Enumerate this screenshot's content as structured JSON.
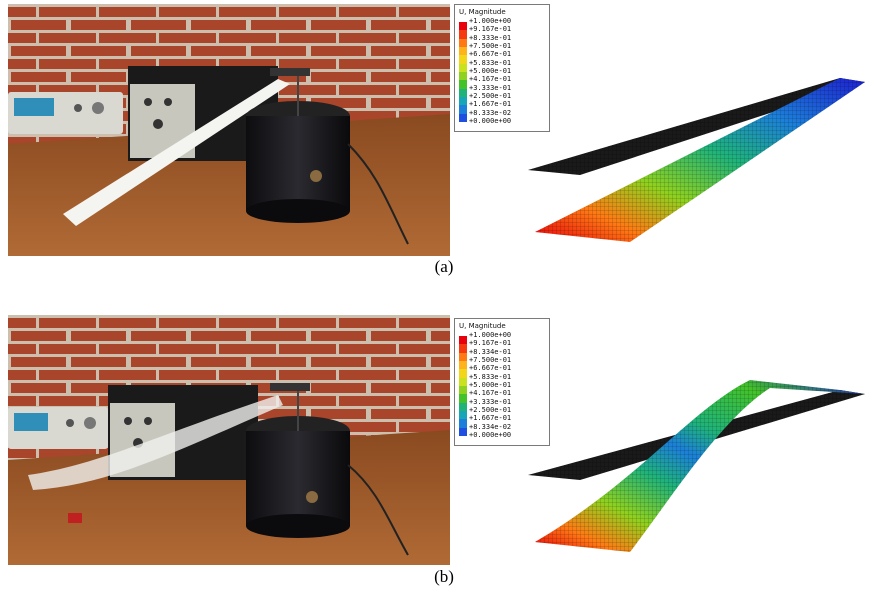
{
  "panels": [
    {
      "caption": "(a)",
      "legend": {
        "title": "U, Magnitude",
        "labels": [
          "+1.000e+00",
          "+9.167e-01",
          "+8.333e-01",
          "+7.500e-01",
          "+6.667e-01",
          "+5.833e-01",
          "+5.000e-01",
          "+4.167e-01",
          "+3.333e-01",
          "+2.500e-01",
          "+1.667e-01",
          "+8.333e-02",
          "+0.000e+00"
        ]
      }
    },
    {
      "caption": "(b)",
      "legend": {
        "title": "U, Magnitude",
        "labels": [
          "+1.000e+00",
          "+9.167e-01",
          "+8.334e-01",
          "+7.500e-01",
          "+6.667e-01",
          "+5.833e-01",
          "+5.000e-01",
          "+4.167e-01",
          "+3.333e-01",
          "+2.500e-01",
          "+1.667e-01",
          "+8.334e-02",
          "+0.000e+00"
        ]
      }
    }
  ],
  "colors": {
    "contour_scale": [
      "#e8000b",
      "#f53a10",
      "#ff7a14",
      "#ffb31a",
      "#f2d619",
      "#c9e21d",
      "#8fd11f",
      "#43c229",
      "#1fb37a",
      "#17a6b8",
      "#1c7fd9",
      "#1f4fe0",
      "#1d1fd0"
    ],
    "brick": "#a8452a",
    "mortar": "#d9cfc2",
    "table_wood": "#9a5a2a"
  }
}
